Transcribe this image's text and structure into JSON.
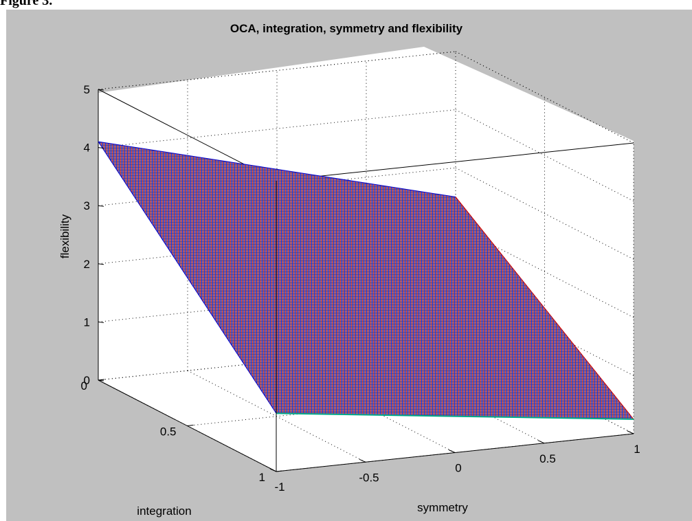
{
  "figure": {
    "caption": "Figure 3."
  },
  "chart_data": {
    "type": "surface",
    "title": "OCA, integration, symmetry and flexibility",
    "xlabel": "symmetry",
    "ylabel": "integration",
    "zlabel": "flexibility",
    "xlim": [
      -1,
      1
    ],
    "ylim": [
      0,
      1
    ],
    "zlim": [
      0,
      5
    ],
    "x_ticks": [
      "-1",
      "-0.5",
      "0",
      "0.5",
      "1"
    ],
    "y_ticks": [
      "0",
      "0.5",
      "1"
    ],
    "z_ticks": [
      "0",
      "1",
      "2",
      "3",
      "4",
      "5"
    ],
    "grid": true,
    "surface": {
      "corners": [
        {
          "symmetry": -1,
          "integration": 0,
          "flexibility": 4.1
        },
        {
          "symmetry": 1,
          "integration": 0,
          "flexibility": 2.5
        },
        {
          "symmetry": -1,
          "integration": 1,
          "flexibility": 1.0
        },
        {
          "symmetry": 1,
          "integration": 1,
          "flexibility": 0.25
        }
      ]
    },
    "colors": {
      "panel": "#c0c0c0",
      "axes_background": "#ffffff",
      "surface_a": "#0000cc",
      "surface_b": "#cc0000",
      "surface_edge": "#00aa88"
    }
  }
}
